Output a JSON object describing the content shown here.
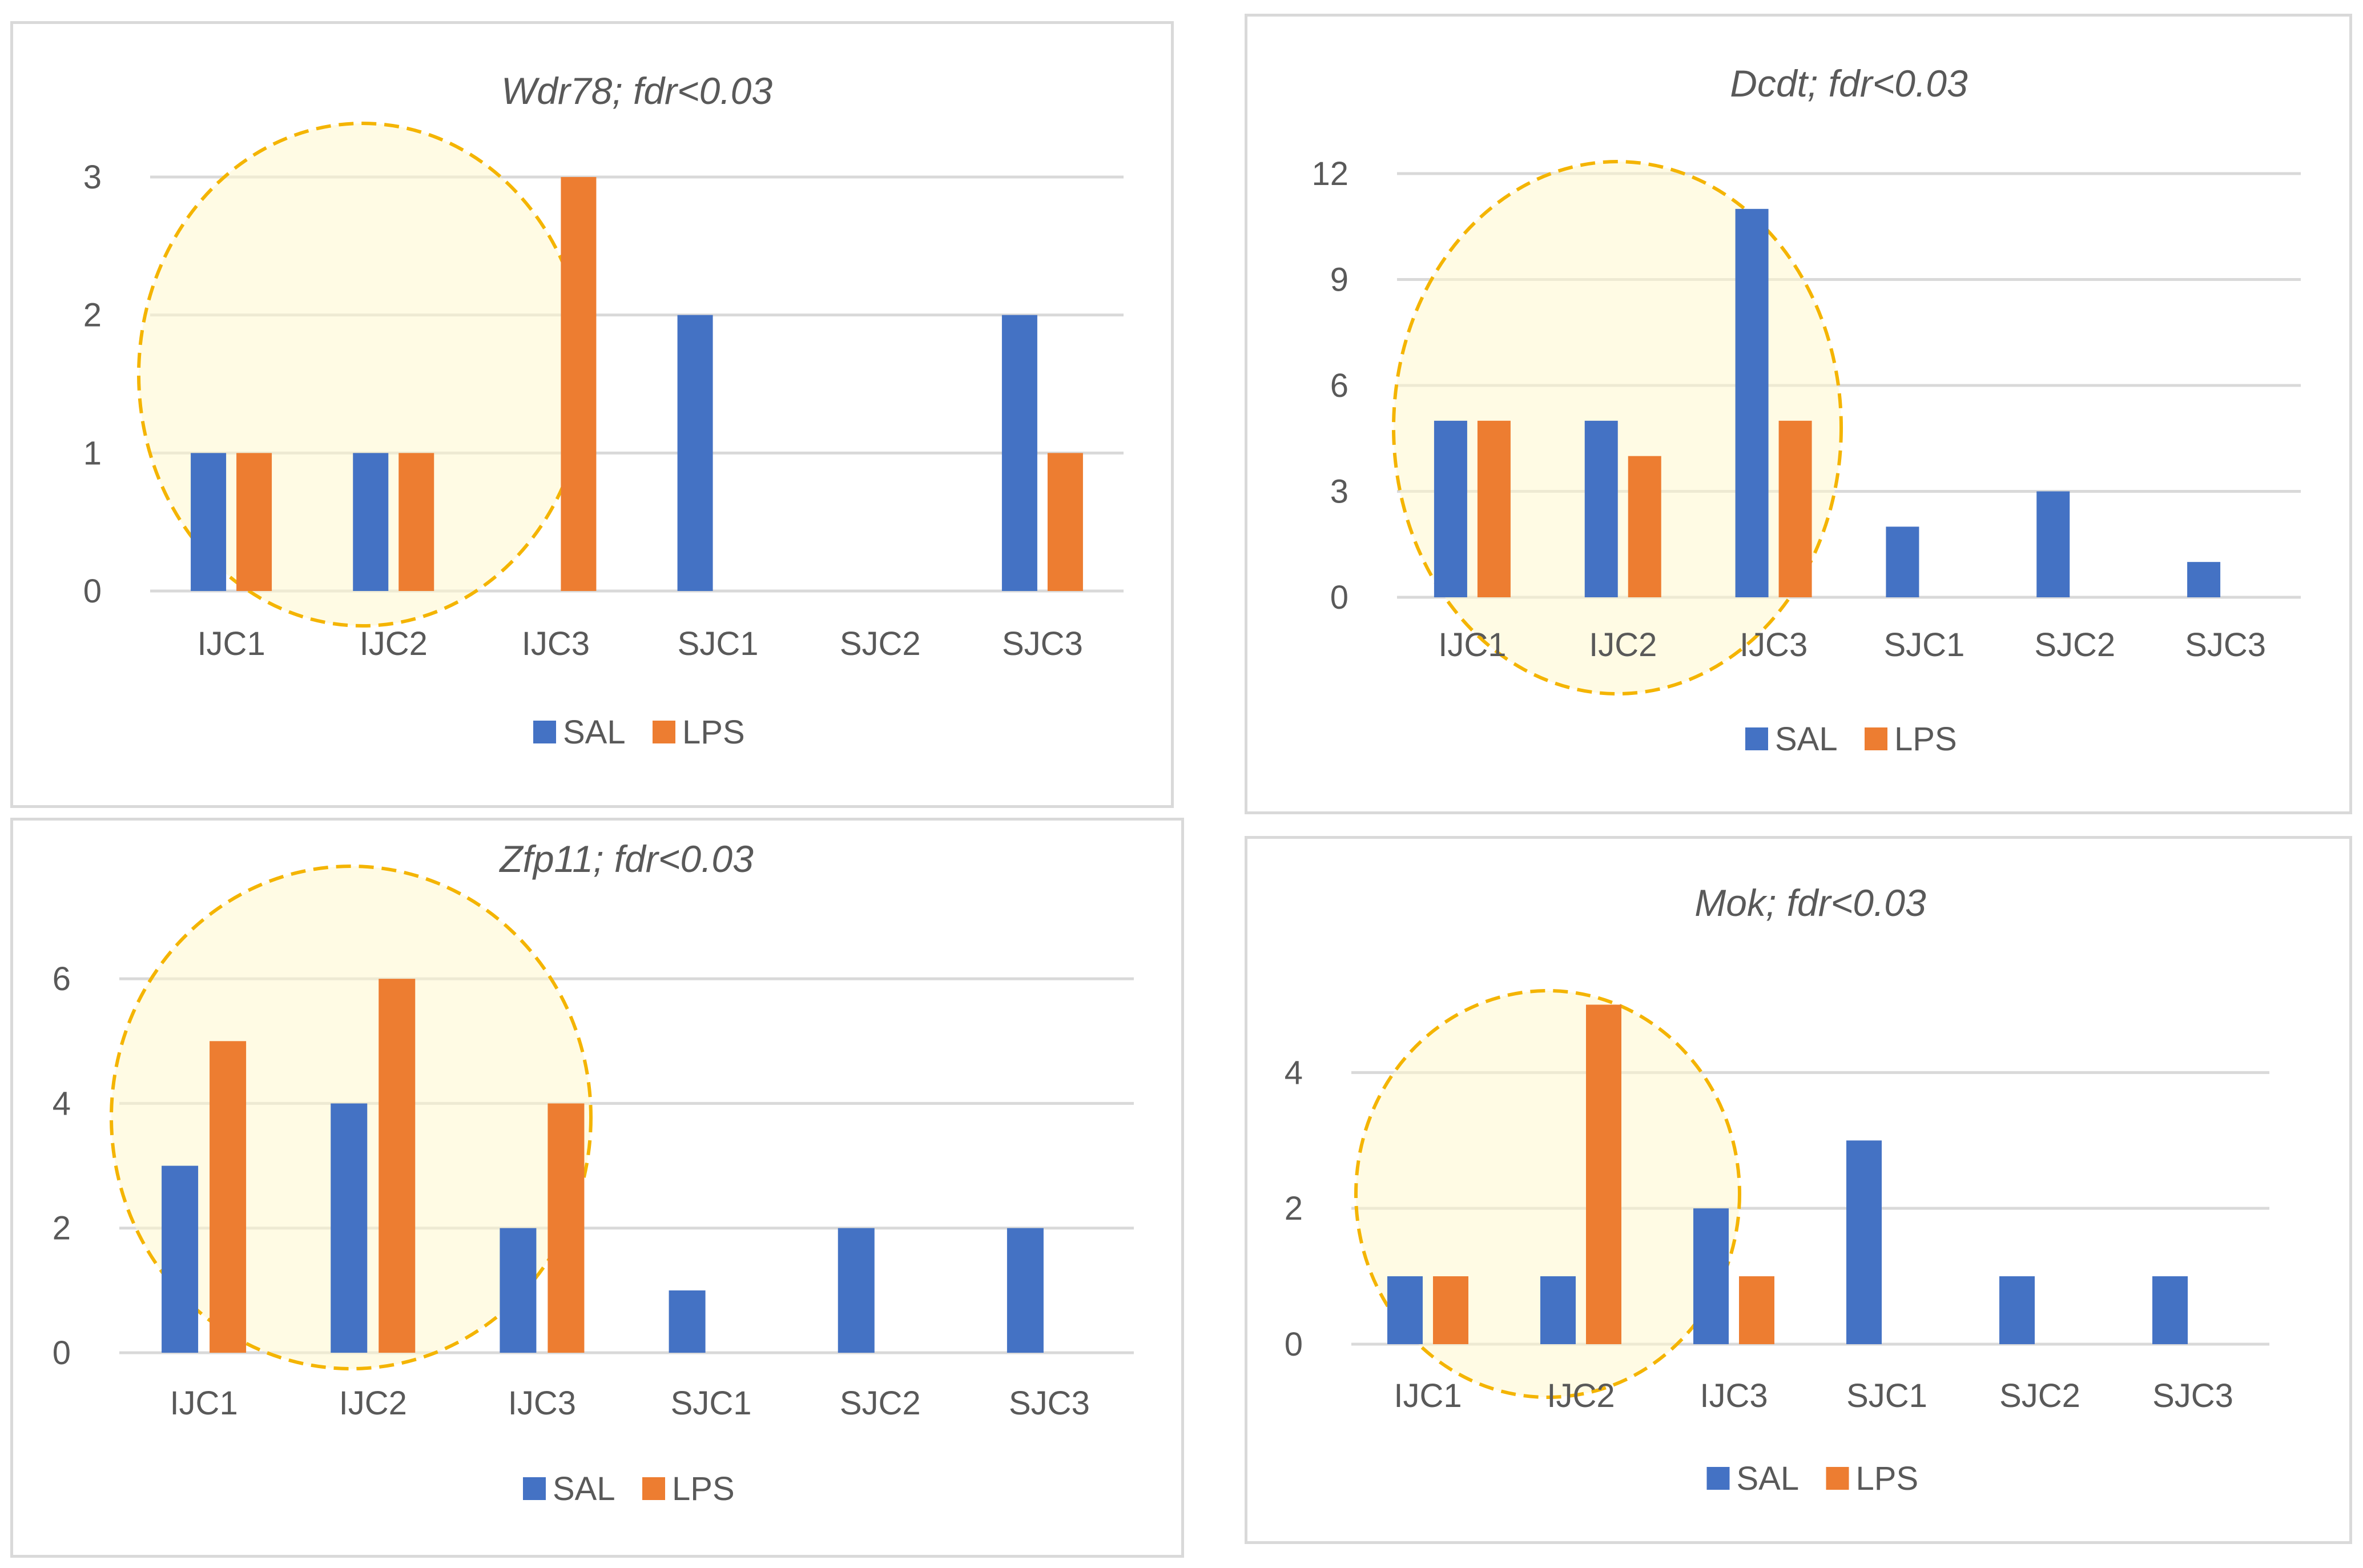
{
  "colors": {
    "sal": "#4472c4",
    "lps": "#ed7d31",
    "highlight": "#f4b400"
  },
  "chart_data": [
    {
      "type": "bar",
      "title": "Wdr78; fdr<0.03",
      "categories": [
        "IJC1",
        "IJC2",
        "IJC3",
        "SJC1",
        "SJC2",
        "SJC3"
      ],
      "series": [
        {
          "name": "SAL",
          "values": [
            1,
            1,
            0,
            2,
            0,
            2
          ]
        },
        {
          "name": "LPS",
          "values": [
            1,
            1,
            3,
            0,
            0,
            1
          ]
        }
      ],
      "yticks": [
        "0",
        "1",
        "2",
        "3"
      ],
      "ylim": [
        0,
        3
      ],
      "grid": true,
      "legend": "bottom",
      "annotations": [
        {
          "type": "dashed-ellipse",
          "covers": [
            "IJC1",
            "IJC2",
            "IJC3"
          ]
        }
      ]
    },
    {
      "type": "bar",
      "title": "Dcdt; fdr<0.03",
      "categories": [
        "IJC1",
        "IJC2",
        "IJC3",
        "SJC1",
        "SJC2",
        "SJC3"
      ],
      "series": [
        {
          "name": "SAL",
          "values": [
            5,
            5,
            11,
            2,
            3,
            1
          ]
        },
        {
          "name": "LPS",
          "values": [
            5,
            4,
            5,
            0,
            0,
            0
          ]
        }
      ],
      "yticks": [
        "0",
        "3",
        "6",
        "9",
        "12"
      ],
      "ylim": [
        0,
        12
      ],
      "grid": true,
      "legend": "bottom",
      "annotations": [
        {
          "type": "dashed-ellipse",
          "covers": [
            "IJC1",
            "IJC2",
            "IJC3"
          ]
        }
      ]
    },
    {
      "type": "bar",
      "title": "Zfp11; fdr<0.03",
      "categories": [
        "IJC1",
        "IJC2",
        "IJC3",
        "SJC1",
        "SJC2",
        "SJC3"
      ],
      "series": [
        {
          "name": "SAL",
          "values": [
            3,
            4,
            2,
            1,
            2,
            2
          ]
        },
        {
          "name": "LPS",
          "values": [
            5,
            6,
            4,
            0,
            0,
            0
          ]
        }
      ],
      "yticks": [
        "0",
        "2",
        "4",
        "6"
      ],
      "ylim": [
        0,
        7
      ],
      "grid": true,
      "legend": "bottom",
      "annotations": [
        {
          "type": "dashed-ellipse",
          "covers": [
            "IJC1",
            "IJC2",
            "IJC3"
          ]
        }
      ]
    },
    {
      "type": "bar",
      "title": "Mok; fdr<0.03",
      "categories": [
        "IJC1",
        "IJC2",
        "IJC3",
        "SJC1",
        "SJC2",
        "SJC3"
      ],
      "series": [
        {
          "name": "SAL",
          "values": [
            1,
            1,
            2,
            3,
            1,
            1
          ]
        },
        {
          "name": "LPS",
          "values": [
            1,
            5,
            1,
            0,
            0,
            0
          ]
        }
      ],
      "yticks": [
        "0",
        "2",
        "4"
      ],
      "ylim": [
        0,
        5.5
      ],
      "grid": true,
      "legend": "bottom",
      "annotations": [
        {
          "type": "dashed-ellipse",
          "covers": [
            "IJC1",
            "IJC2"
          ]
        }
      ]
    }
  ]
}
